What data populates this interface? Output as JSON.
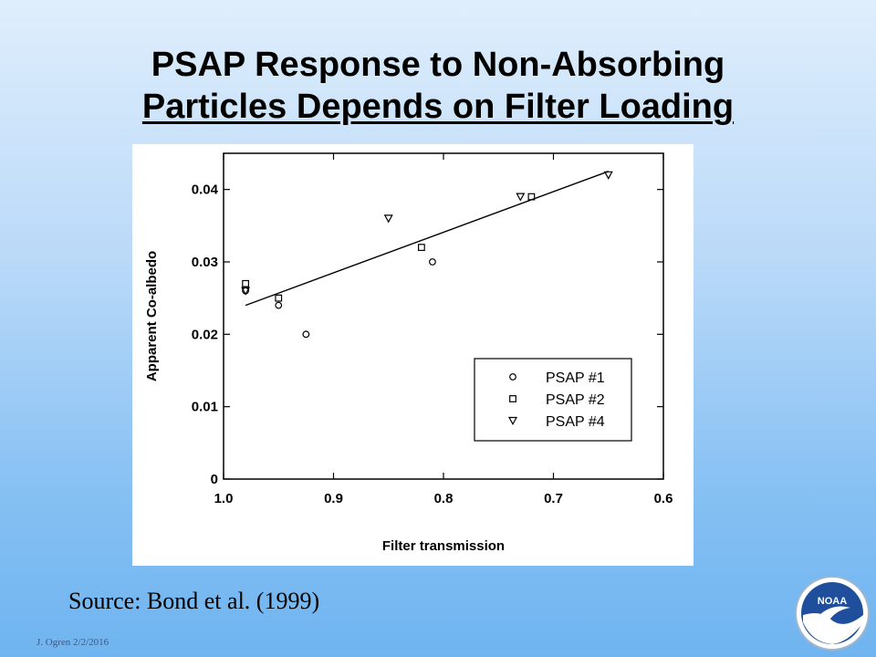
{
  "slide": {
    "title_line1": "PSAP Response to Non-Absorbing",
    "title_line2": "Particles Depends on Filter Loading",
    "source": "Source: Bond et al. (1999)",
    "footer": "J. Ogren  2/2/2016",
    "logo_text": "NOAA",
    "logo_icon": "noaa-logo-icon"
  },
  "chart_data": {
    "type": "scatter",
    "title": "",
    "xlabel": "Filter transmission",
    "ylabel": "Apparent Co-albedo",
    "xlim": [
      1.0,
      0.6
    ],
    "ylim": [
      0,
      0.045
    ],
    "x_ticks": [
      1.0,
      0.9,
      0.8,
      0.7,
      0.6
    ],
    "x_tick_labels": [
      "1.0",
      "0.9",
      "0.8",
      "0.7",
      "0.6"
    ],
    "y_ticks": [
      0,
      0.01,
      0.02,
      0.03,
      0.04
    ],
    "y_tick_labels": [
      "0",
      "0.01",
      "0.02",
      "0.03",
      "0.04"
    ],
    "legend_position": "lower-right",
    "series": [
      {
        "name": "PSAP #1",
        "marker": "circle",
        "points": [
          [
            0.98,
            0.026
          ],
          [
            0.95,
            0.024
          ],
          [
            0.925,
            0.02
          ],
          [
            0.81,
            0.03
          ]
        ]
      },
      {
        "name": "PSAP #2",
        "marker": "square",
        "points": [
          [
            0.98,
            0.027
          ],
          [
            0.95,
            0.025
          ],
          [
            0.82,
            0.032
          ],
          [
            0.72,
            0.039
          ]
        ]
      },
      {
        "name": "PSAP #4",
        "marker": "triangle-down",
        "points": [
          [
            0.98,
            0.026
          ],
          [
            0.85,
            0.036
          ],
          [
            0.73,
            0.039
          ],
          [
            0.65,
            0.042
          ]
        ]
      }
    ],
    "fit_line": {
      "x": [
        0.98,
        0.65
      ],
      "y": [
        0.024,
        0.0425
      ]
    }
  }
}
